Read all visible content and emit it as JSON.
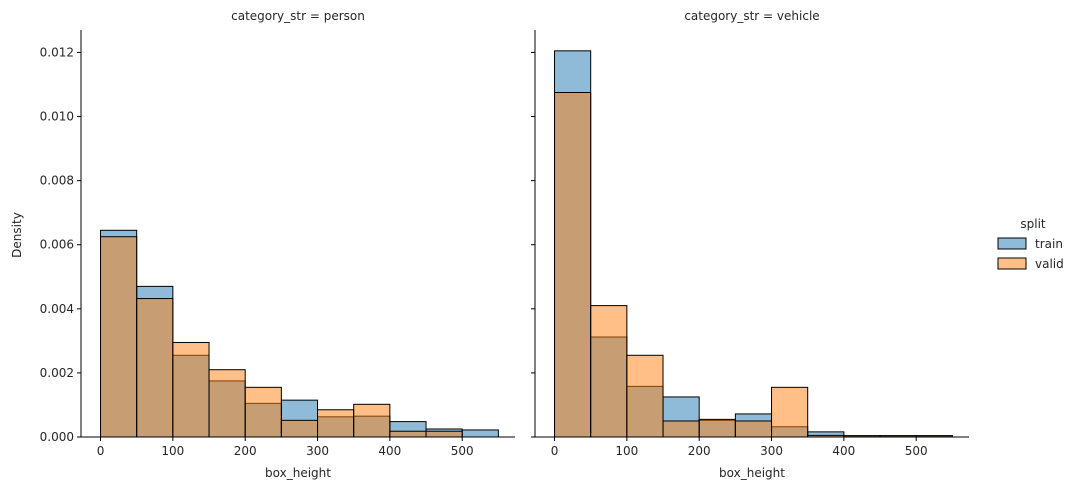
{
  "chart_data": {
    "type": "bar",
    "ylabel": "Density",
    "legend": {
      "title": "split",
      "placement": "right",
      "entries": [
        {
          "name": "train",
          "color": "#1f77b4"
        },
        {
          "name": "valid",
          "color": "#ff7f0e"
        }
      ]
    },
    "bin_edges": [
      0,
      50,
      100,
      150,
      200,
      250,
      300,
      350,
      400,
      450,
      500,
      550
    ],
    "ylim": [
      0,
      0.0127
    ],
    "yticks": [
      0,
      0.002,
      0.004,
      0.006,
      0.008,
      0.01,
      0.012
    ],
    "ytick_labels": [
      "0.000",
      "0.002",
      "0.004",
      "0.006",
      "0.008",
      "0.010",
      "0.012"
    ],
    "grid": false,
    "panels": [
      {
        "title": "category_str = person",
        "xlabel": "box_height",
        "xlim": [
          -27,
          573
        ],
        "xticks": [
          0,
          100,
          200,
          300,
          400,
          500
        ],
        "xtick_labels": [
          "0",
          "100",
          "200",
          "300",
          "400",
          "500"
        ],
        "series": [
          {
            "name": "train",
            "values": [
              0.00645,
              0.0047,
              0.00255,
              0.00175,
              0.00105,
              0.00115,
              0.00063,
              0.00065,
              0.00048,
              0.00025,
              0.00022
            ]
          },
          {
            "name": "valid",
            "values": [
              0.00625,
              0.00432,
              0.00295,
              0.0021,
              0.00155,
              0.00052,
              0.00085,
              0.00102,
              0.00018,
              0.00018,
              0
            ]
          }
        ]
      },
      {
        "title": "category_str = vehicle",
        "xlabel": "box_height",
        "xlim": [
          -27,
          573
        ],
        "xticks": [
          0,
          100,
          200,
          300,
          400,
          500
        ],
        "xtick_labels": [
          "0",
          "100",
          "200",
          "300",
          "400",
          "500"
        ],
        "series": [
          {
            "name": "train",
            "values": [
              0.01205,
              0.00312,
              0.00158,
              0.00125,
              0.00052,
              0.00072,
              0.00032,
              0.00016,
              4e-05,
              4e-05,
              4e-05
            ]
          },
          {
            "name": "valid",
            "values": [
              0.01075,
              0.0041,
              0.00255,
              0.0005,
              0.00055,
              0.0005,
              0.00155,
              5e-05,
              4e-05,
              4e-05,
              4e-05
            ]
          }
        ]
      }
    ]
  }
}
